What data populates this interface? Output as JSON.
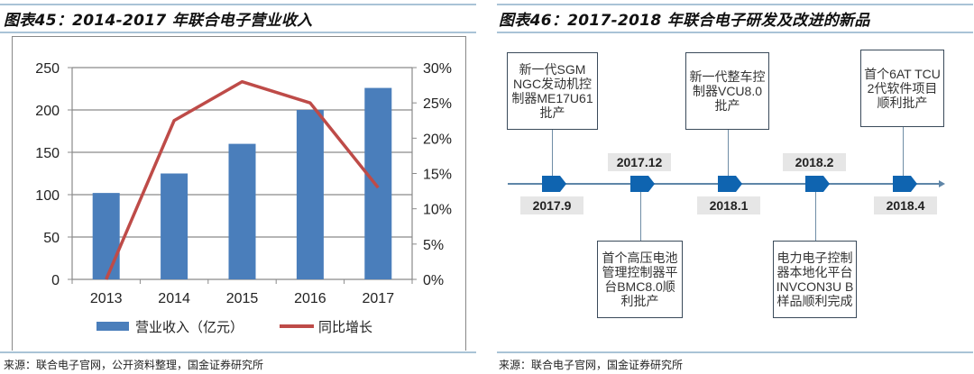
{
  "left": {
    "title": "图表45：2014-2017 年联合电子营业收入",
    "source": "来源：联合电子官网，公开资料整理，国金证券研究所"
  },
  "right": {
    "title": "图表46：2017-2018 年联合电子研发及改进的新品",
    "source": "来源：联合电子官网，国金证券研究所",
    "events": [
      {
        "date": "2017.9",
        "text": "新一代SGM NGC发动机控制器ME17U61批产",
        "position": "above"
      },
      {
        "date": "2017.12",
        "text": "首个高压电池管理控制器平台BMC8.0顺利批产",
        "position": "below"
      },
      {
        "date": "2018.1",
        "text": "新一代整车控制器VCU8.0批产",
        "position": "above"
      },
      {
        "date": "2018.2",
        "text": "电力电子控制器本地化平台INVCON3U B样品顺利完成",
        "position": "below"
      },
      {
        "date": "2018.4",
        "text": "首个6AT TCU 2代软件项目顺利批产",
        "position": "above"
      }
    ],
    "marker_color": "#0f64b0"
  },
  "chart_data": {
    "type": "bar+line",
    "categories": [
      "2013",
      "2014",
      "2015",
      "2016",
      "2017"
    ],
    "series": [
      {
        "name": "营业收入（亿元）",
        "type": "bar",
        "axis": "left",
        "values": [
          102,
          125,
          160,
          200,
          226
        ],
        "color": "#4a7ebb"
      },
      {
        "name": "同比增长",
        "type": "line",
        "axis": "right",
        "values": [
          0,
          22.5,
          28,
          25,
          13
        ],
        "color": "#be4b48"
      }
    ],
    "y_left": {
      "range": [
        0,
        250
      ],
      "ticks": [
        "0",
        "50",
        "100",
        "150",
        "200",
        "250"
      ]
    },
    "y_right": {
      "range": [
        0,
        30
      ],
      "ticks": [
        "0%",
        "5%",
        "10%",
        "15%",
        "20%",
        "25%",
        "30%"
      ]
    },
    "grid": true,
    "legend": "bottom"
  }
}
